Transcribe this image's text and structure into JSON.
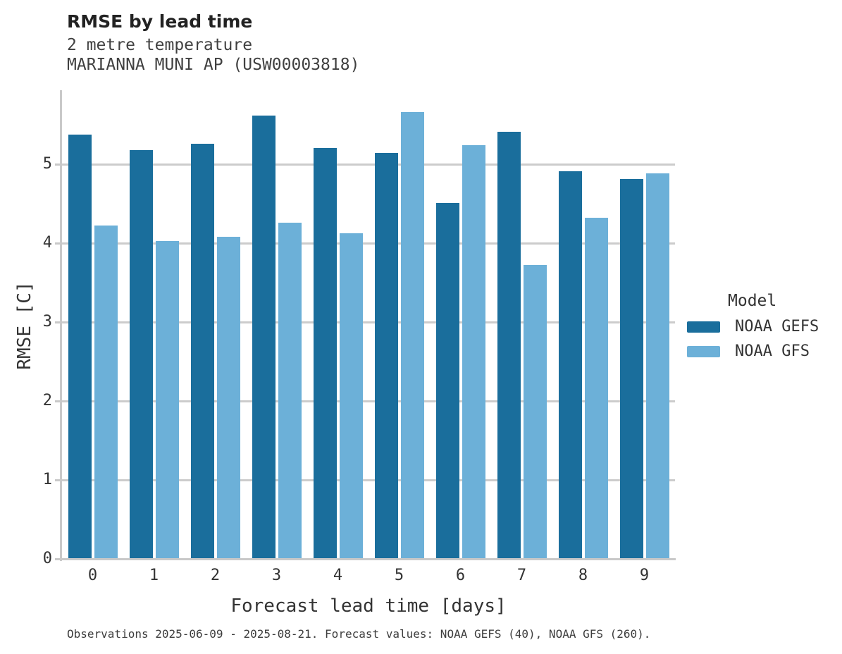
{
  "chart_data": {
    "type": "bar",
    "title": "RMSE by lead time",
    "subtitle": [
      "2 metre temperature",
      "MARIANNA MUNI AP (USW00003818)"
    ],
    "categories": [
      "0",
      "1",
      "2",
      "3",
      "4",
      "5",
      "6",
      "7",
      "8",
      "9"
    ],
    "series": [
      {
        "name": "NOAA GEFS",
        "color": "#1a6e9c",
        "values": [
          5.37,
          5.17,
          5.25,
          5.61,
          5.2,
          5.14,
          4.5,
          5.4,
          4.9,
          4.81
        ]
      },
      {
        "name": "NOAA GFS",
        "color": "#6cb0d8",
        "values": [
          4.22,
          4.02,
          4.07,
          4.25,
          4.12,
          5.65,
          5.23,
          3.72,
          4.31,
          4.88
        ]
      }
    ],
    "xlabel": "Forecast lead time [days]",
    "ylabel": "RMSE [C]",
    "ylim": [
      0,
      5.94
    ],
    "yticks": [
      0,
      1,
      2,
      3,
      4,
      5
    ],
    "grid": true,
    "legend_title": "Model",
    "legend_position": "right",
    "caption": "Observations 2025-06-09 - 2025-08-21. Forecast values: NOAA GEFS (40), NOAA GFS (260).",
    "colors": {
      "bar_dark": "#1a6e9c",
      "bar_light": "#6cb0d8",
      "gridline": "#cccccc",
      "axis_line": "#c9c9c9",
      "title_text": "#222222",
      "subtitle_text": "#404040",
      "label_text": "#333333"
    }
  }
}
